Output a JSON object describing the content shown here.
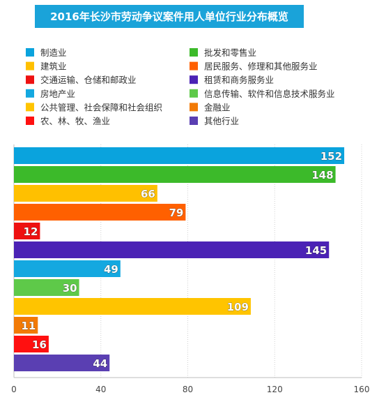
{
  "chart_data": {
    "type": "bar",
    "orientation": "horizontal",
    "title": "2016年长沙市劳动争议案件用人单位行业分布概览",
    "title_bg": "#1aa3d9",
    "xlim": [
      0,
      160
    ],
    "x_ticks": [
      0,
      40,
      80,
      120,
      160
    ],
    "grid": "vertical dotted",
    "legend_position": "top",
    "categories": [
      "制造业",
      "批发和零售业",
      "建筑业",
      "居民服务、修理和其他服务业",
      "交通运输、仓储和邮政业",
      "租赁和商务服务业",
      "房地产业",
      "信息传输、软件和信息技术服务业",
      "公共管理、社会保障和社会组织",
      "金融业",
      "农、林、牧、渔业",
      "其他行业"
    ],
    "values": [
      152,
      148,
      66,
      79,
      12,
      145,
      49,
      30,
      109,
      11,
      16,
      44
    ],
    "colors": [
      "#0aa3dd",
      "#3cba2a",
      "#ffc000",
      "#ff6000",
      "#ee1111",
      "#4b22b5",
      "#14a8e0",
      "#5ec949",
      "#ffc400",
      "#f27a06",
      "#ff1010",
      "#5a3fb2"
    ]
  }
}
